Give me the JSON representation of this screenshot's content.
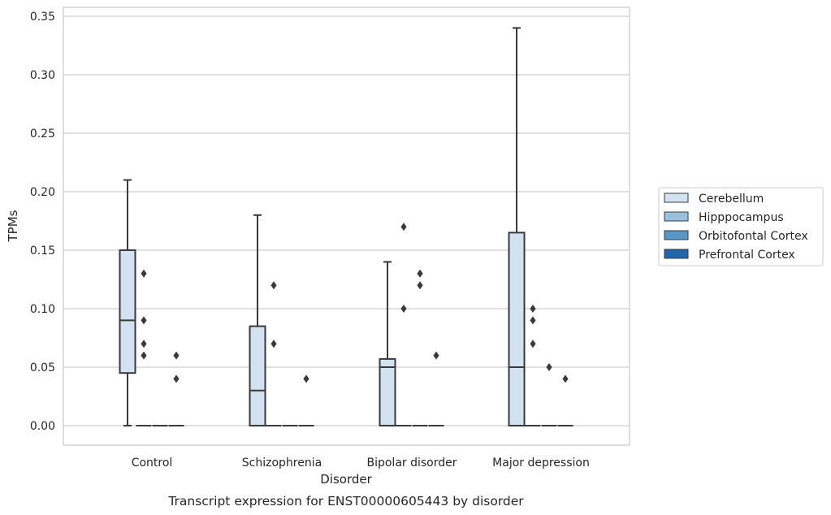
{
  "chart_data": {
    "type": "box",
    "caption": "Transcript expression for ENST00000605443 by disorder",
    "xlabel": "Disorder",
    "ylabel": "TPMs",
    "categories": [
      "Control",
      "Schizophrenia",
      "Bipolar disorder",
      "Major depression"
    ],
    "ylim": [
      -0.017,
      0.357
    ],
    "yticks": [
      0.0,
      0.05,
      0.1,
      0.15,
      0.2,
      0.25,
      0.3,
      0.35
    ],
    "ytick_labels": [
      "0.00",
      "0.05",
      "0.10",
      "0.15",
      "0.20",
      "0.25",
      "0.30",
      "0.35"
    ],
    "grid": true,
    "legend_position": "right",
    "series": [
      {
        "name": "Cerebellum",
        "color": "#d2e2f0",
        "boxes": [
          {
            "whisker_low": 0.0,
            "q1": 0.045,
            "median": 0.09,
            "q3": 0.15,
            "whisker_high": 0.21,
            "outliers": []
          },
          {
            "whisker_low": 0.0,
            "q1": 0.0,
            "median": 0.03,
            "q3": 0.085,
            "whisker_high": 0.18,
            "outliers": []
          },
          {
            "whisker_low": 0.0,
            "q1": 0.0,
            "median": 0.05,
            "q3": 0.057,
            "whisker_high": 0.14,
            "outliers": []
          },
          {
            "whisker_low": 0.0,
            "q1": 0.0,
            "median": 0.05,
            "q3": 0.165,
            "whisker_high": 0.34,
            "outliers": []
          }
        ]
      },
      {
        "name": "Hipppocampus",
        "color": "#9ac1dc",
        "boxes": [
          {
            "whisker_low": 0.0,
            "q1": 0.0,
            "median": 0.0,
            "q3": 0.0,
            "whisker_high": 0.0,
            "outliers": [
              0.06,
              0.07,
              0.09,
              0.13
            ]
          },
          {
            "whisker_low": 0.0,
            "q1": 0.0,
            "median": 0.0,
            "q3": 0.0,
            "whisker_high": 0.0,
            "outliers": [
              0.07,
              0.12
            ]
          },
          {
            "whisker_low": 0.0,
            "q1": 0.0,
            "median": 0.0,
            "q3": 0.0,
            "whisker_high": 0.0,
            "outliers": [
              0.1,
              0.17
            ]
          },
          {
            "whisker_low": 0.0,
            "q1": 0.0,
            "median": 0.0,
            "q3": 0.0,
            "whisker_high": 0.0,
            "outliers": [
              0.07,
              0.09,
              0.1
            ]
          }
        ]
      },
      {
        "name": "Orbitofontal Cortex",
        "color": "#5597c6",
        "boxes": [
          {
            "whisker_low": 0.0,
            "q1": 0.0,
            "median": 0.0,
            "q3": 0.0,
            "whisker_high": 0.0,
            "outliers": []
          },
          {
            "whisker_low": 0.0,
            "q1": 0.0,
            "median": 0.0,
            "q3": 0.0,
            "whisker_high": 0.0,
            "outliers": []
          },
          {
            "whisker_low": 0.0,
            "q1": 0.0,
            "median": 0.0,
            "q3": 0.0,
            "whisker_high": 0.0,
            "outliers": [
              0.12,
              0.13
            ]
          },
          {
            "whisker_low": 0.0,
            "q1": 0.0,
            "median": 0.0,
            "q3": 0.0,
            "whisker_high": 0.0,
            "outliers": [
              0.05
            ]
          }
        ]
      },
      {
        "name": "Prefrontal Cortex",
        "color": "#2166ac",
        "boxes": [
          {
            "whisker_low": 0.0,
            "q1": 0.0,
            "median": 0.0,
            "q3": 0.0,
            "whisker_high": 0.0,
            "outliers": [
              0.04,
              0.06
            ]
          },
          {
            "whisker_low": 0.0,
            "q1": 0.0,
            "median": 0.0,
            "q3": 0.0,
            "whisker_high": 0.0,
            "outliers": [
              0.04
            ]
          },
          {
            "whisker_low": 0.0,
            "q1": 0.0,
            "median": 0.0,
            "q3": 0.0,
            "whisker_high": 0.0,
            "outliers": [
              0.06
            ]
          },
          {
            "whisker_low": 0.0,
            "q1": 0.0,
            "median": 0.0,
            "q3": 0.0,
            "whisker_high": 0.0,
            "outliers": [
              0.04
            ]
          }
        ]
      }
    ]
  }
}
